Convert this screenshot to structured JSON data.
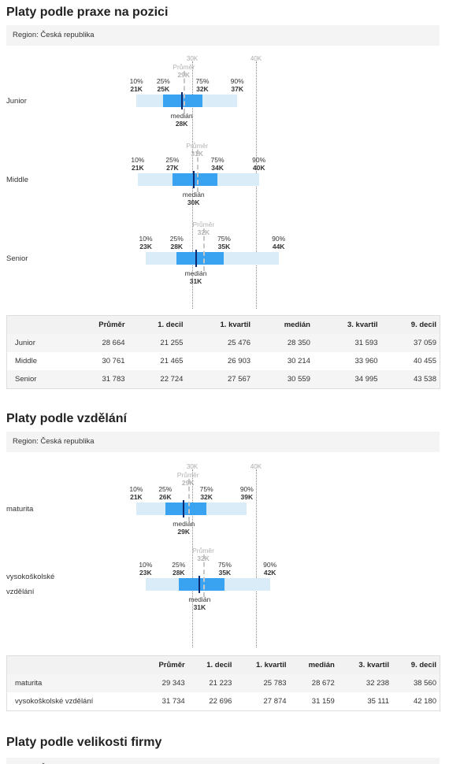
{
  "sections": [
    {
      "title": "Platy podle praxe na pozici",
      "region": "Region: Česká republika",
      "chart_data": {
        "type": "box",
        "axis_min": 10000,
        "axis_max": 55000,
        "gridlines": [
          {
            "value": 30000,
            "label": "30K"
          },
          {
            "value": 40000,
            "label": "40K"
          }
        ],
        "avg_label": "Průměr",
        "median_label": "medián",
        "rows": [
          {
            "label": "Junior",
            "p10": 21255,
            "p25": 25476,
            "median": 28350,
            "p75": 31593,
            "p90": 37059,
            "avg": 28664,
            "p10_lbl": "10%",
            "p10_val": "21K",
            "p25_lbl": "25%",
            "p25_val": "25K",
            "p75_lbl": "75%",
            "p75_val": "32K",
            "p90_lbl": "90%",
            "p90_val": "37K",
            "avg_val": "29K",
            "median_val": "28K"
          },
          {
            "label": "Middle",
            "p10": 21465,
            "p25": 26903,
            "median": 30214,
            "p75": 33960,
            "p90": 40455,
            "avg": 30761,
            "p10_lbl": "10%",
            "p10_val": "21K",
            "p25_lbl": "25%",
            "p25_val": "27K",
            "p75_lbl": "75%",
            "p75_val": "34K",
            "p90_lbl": "90%",
            "p90_val": "40K",
            "avg_val": "31K",
            "median_val": "30K"
          },
          {
            "label": "Senior",
            "p10": 22724,
            "p25": 27567,
            "median": 30559,
            "p75": 34995,
            "p90": 43538,
            "avg": 31783,
            "p10_lbl": "10%",
            "p10_val": "23K",
            "p25_lbl": "25%",
            "p25_val": "28K",
            "p75_lbl": "75%",
            "p75_val": "35K",
            "p90_lbl": "90%",
            "p90_val": "44K",
            "avg_val": "32K",
            "median_val": "31K"
          }
        ]
      },
      "table": {
        "headers": [
          "",
          "Průměr",
          "1. decil",
          "1. kvartil",
          "medián",
          "3. kvartil",
          "9. decil"
        ],
        "rows": [
          [
            "Junior",
            "28 664",
            "21 255",
            "25 476",
            "28 350",
            "31 593",
            "37 059"
          ],
          [
            "Middle",
            "30 761",
            "21 465",
            "26 903",
            "30 214",
            "33 960",
            "40 455"
          ],
          [
            "Senior",
            "31 783",
            "22 724",
            "27 567",
            "30 559",
            "34 995",
            "43 538"
          ]
        ]
      }
    },
    {
      "title": "Platy podle vzdělání",
      "region": "Region: Česká republika",
      "chart_data": {
        "type": "box",
        "axis_min": 10000,
        "axis_max": 55000,
        "gridlines": [
          {
            "value": 30000,
            "label": "30K"
          },
          {
            "value": 40000,
            "label": "40K"
          }
        ],
        "avg_label": "Průměr",
        "median_label": "medián",
        "rows": [
          {
            "label": "maturita",
            "p10": 21223,
            "p25": 25783,
            "median": 28672,
            "p75": 32238,
            "p90": 38560,
            "avg": 29343,
            "p10_lbl": "10%",
            "p10_val": "21K",
            "p25_lbl": "25%",
            "p25_val": "26K",
            "p75_lbl": "75%",
            "p75_val": "32K",
            "p90_lbl": "90%",
            "p90_val": "39K",
            "avg_val": "29K",
            "median_val": "29K"
          },
          {
            "label": "vysokoškolské vzdělání",
            "p10": 22696,
            "p25": 27874,
            "median": 31159,
            "p75": 35111,
            "p90": 42180,
            "avg": 31734,
            "p10_lbl": "10%",
            "p10_val": "23K",
            "p25_lbl": "25%",
            "p25_val": "28K",
            "p75_lbl": "75%",
            "p75_val": "35K",
            "p90_lbl": "90%",
            "p90_val": "42K",
            "avg_val": "32K",
            "median_val": "31K"
          }
        ]
      },
      "table": {
        "headers": [
          "",
          "Průměr",
          "1. decil",
          "1. kvartil",
          "medián",
          "3. kvartil",
          "9. decil"
        ],
        "rows": [
          [
            "maturita",
            "29 343",
            "21 223",
            "25 783",
            "28 672",
            "32 238",
            "38 560"
          ],
          [
            "vysokoškolské vzdělání",
            "31 734",
            "22 696",
            "27 874",
            "31 159",
            "35 111",
            "42 180"
          ]
        ]
      }
    },
    {
      "title": "Platy podle velikosti firmy",
      "region": "Region: Česká republika"
    }
  ]
}
